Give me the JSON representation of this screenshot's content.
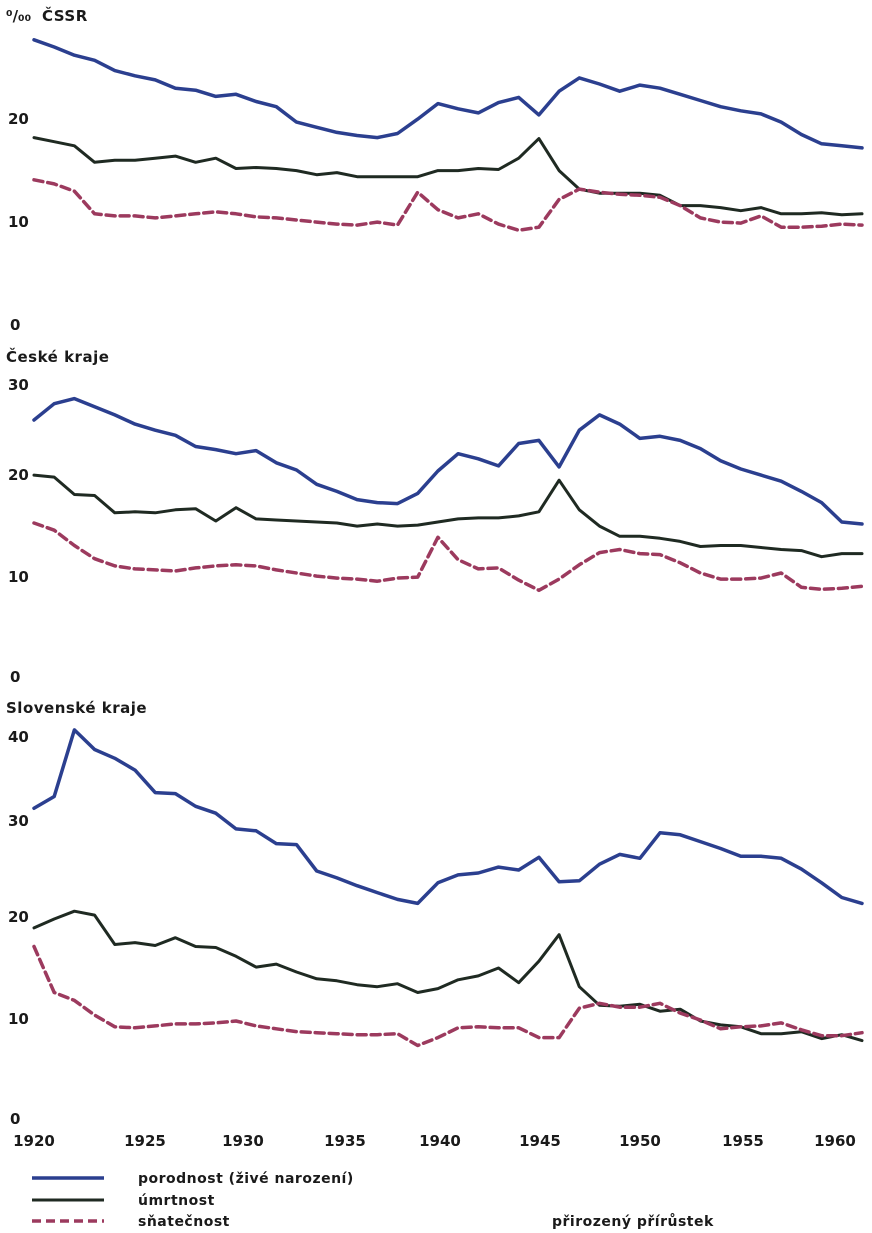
{
  "unit_label": "⁰/₀₀",
  "x_ticks": [
    1920,
    1925,
    1930,
    1935,
    1940,
    1945,
    1950,
    1955,
    1960
  ],
  "legend": [
    {
      "label": "porodnost (živé narození)",
      "style": "solid",
      "color": "#2b3f8f"
    },
    {
      "label": "úmrtnost",
      "style": "solid",
      "color": "#1f2a22"
    },
    {
      "label": "sňatečnost",
      "style": "dashed",
      "color": "#9c3a5e"
    }
  ],
  "extra_label": "přirozený přírůstek",
  "chart_data": [
    {
      "type": "line",
      "title": "ČSSR",
      "xlim": [
        1920,
        1961
      ],
      "ylim": [
        0,
        27
      ],
      "y_ticks": [
        0,
        10,
        20
      ],
      "x": [
        1920,
        1921,
        1922,
        1923,
        1924,
        1925,
        1926,
        1927,
        1928,
        1929,
        1930,
        1931,
        1932,
        1933,
        1934,
        1935,
        1936,
        1937,
        1938,
        1939,
        1940,
        1941,
        1942,
        1943,
        1944,
        1945,
        1946,
        1947,
        1948,
        1949,
        1950,
        1951,
        1952,
        1953,
        1954,
        1955,
        1956,
        1957,
        1958,
        1959,
        1960,
        1961
      ],
      "series": [
        {
          "name": "porodnost (živé narození)",
          "color": "#2b3f8f",
          "style": "solid",
          "values": [
            27.5,
            26.8,
            26.0,
            25.5,
            24.5,
            24.0,
            23.6,
            22.8,
            22.6,
            22.0,
            22.2,
            21.5,
            21.0,
            19.5,
            19.0,
            18.5,
            18.2,
            18.0,
            18.4,
            19.8,
            21.3,
            20.8,
            20.4,
            21.4,
            21.9,
            20.2,
            22.5,
            23.8,
            23.2,
            22.5,
            23.1,
            22.8,
            22.2,
            21.6,
            21.0,
            20.6,
            20.3,
            19.5,
            18.3,
            17.4,
            17.2,
            17.0
          ],
          "note": "approximate values read from the figure"
        },
        {
          "name": "úmrtnost",
          "color": "#1f2a22",
          "style": "solid",
          "values": [
            18.0,
            17.6,
            17.2,
            15.6,
            15.8,
            15.8,
            16.0,
            16.2,
            15.6,
            16.0,
            15.0,
            15.1,
            15.0,
            14.8,
            14.4,
            14.6,
            14.2,
            14.2,
            14.2,
            14.2,
            14.8,
            14.8,
            15.0,
            14.9,
            16.0,
            17.9,
            14.8,
            13.0,
            12.6,
            12.6,
            12.6,
            12.4,
            11.4,
            11.4,
            11.2,
            10.9,
            11.2,
            10.6,
            10.6,
            10.7,
            10.5,
            10.6
          ],
          "note": "approximate values read from the figure"
        },
        {
          "name": "sňatečnost",
          "color": "#9c3a5e",
          "style": "dashed",
          "values": [
            13.9,
            13.5,
            12.8,
            10.6,
            10.4,
            10.4,
            10.2,
            10.4,
            10.6,
            10.8,
            10.6,
            10.3,
            10.2,
            10.0,
            9.8,
            9.6,
            9.5,
            9.8,
            9.5,
            12.7,
            11.0,
            10.2,
            10.6,
            9.6,
            9.0,
            9.3,
            12.0,
            13.0,
            12.7,
            12.5,
            12.4,
            12.2,
            11.4,
            10.2,
            9.8,
            9.7,
            10.4,
            9.3,
            9.3,
            9.4,
            9.6,
            9.5
          ],
          "note": "approximate values read from the figure"
        }
      ]
    },
    {
      "type": "line",
      "title": "České kraje",
      "xlim": [
        1920,
        1961
      ],
      "ylim": [
        0,
        30
      ],
      "y_ticks": [
        0,
        10,
        20,
        30
      ],
      "x": [
        1920,
        1921,
        1922,
        1923,
        1924,
        1925,
        1926,
        1927,
        1928,
        1929,
        1930,
        1931,
        1932,
        1933,
        1934,
        1935,
        1936,
        1937,
        1938,
        1939,
        1940,
        1941,
        1942,
        1943,
        1944,
        1945,
        1946,
        1947,
        1948,
        1949,
        1950,
        1951,
        1952,
        1953,
        1954,
        1955,
        1956,
        1957,
        1958,
        1959,
        1960,
        1961
      ],
      "series": [
        {
          "name": "porodnost (živé narození)",
          "color": "#2b3f8f",
          "style": "solid",
          "values": [
            25.0,
            26.6,
            27.1,
            26.3,
            25.5,
            24.6,
            24.0,
            23.5,
            22.4,
            22.1,
            21.7,
            22.0,
            20.8,
            20.1,
            18.7,
            18.0,
            17.2,
            16.9,
            16.8,
            17.8,
            20.0,
            21.7,
            21.2,
            20.5,
            22.7,
            23.0,
            20.4,
            24.0,
            25.5,
            24.6,
            23.2,
            23.4,
            23.0,
            22.2,
            21.0,
            20.2,
            19.6,
            19.0,
            18.0,
            16.9,
            15.0,
            14.8
          ],
          "note": "approximate values read from the figure"
        },
        {
          "name": "úmrtnost",
          "color": "#1f2a22",
          "style": "solid",
          "values": [
            19.6,
            19.4,
            17.7,
            17.6,
            15.9,
            16.0,
            15.9,
            16.2,
            16.3,
            15.1,
            16.4,
            15.3,
            15.2,
            15.1,
            15.0,
            14.9,
            14.6,
            14.8,
            14.6,
            14.7,
            15.0,
            15.3,
            15.4,
            15.4,
            15.6,
            16.0,
            19.1,
            16.2,
            14.6,
            13.6,
            13.6,
            13.4,
            13.1,
            12.6,
            12.7,
            12.7,
            12.5,
            12.3,
            12.2,
            11.6,
            11.9,
            11.9
          ],
          "note": "approximate values read from the figure"
        },
        {
          "name": "sňatečnost",
          "color": "#9c3a5e",
          "style": "dashed",
          "values": [
            14.9,
            14.2,
            12.7,
            11.4,
            10.7,
            10.4,
            10.3,
            10.2,
            10.5,
            10.7,
            10.8,
            10.7,
            10.3,
            10.0,
            9.7,
            9.5,
            9.4,
            9.2,
            9.5,
            9.6,
            13.5,
            11.3,
            10.4,
            10.5,
            9.3,
            8.3,
            9.4,
            10.8,
            12.0,
            12.3,
            11.9,
            11.8,
            11.0,
            10.0,
            9.4,
            9.4,
            9.5,
            10.0,
            8.6,
            8.4,
            8.5,
            8.7
          ],
          "note": "approximate values read from the figure"
        }
      ]
    },
    {
      "type": "line",
      "title": "Slovenské kraje",
      "xlim": [
        1920,
        1961
      ],
      "ylim": [
        0,
        40
      ],
      "y_ticks": [
        0,
        10,
        20,
        30,
        40
      ],
      "x": [
        1920,
        1921,
        1922,
        1923,
        1924,
        1925,
        1926,
        1927,
        1928,
        1929,
        1930,
        1931,
        1932,
        1933,
        1934,
        1935,
        1936,
        1937,
        1938,
        1939,
        1940,
        1941,
        1942,
        1943,
        1944,
        1945,
        1946,
        1947,
        1948,
        1949,
        1950,
        1951,
        1952,
        1953,
        1954,
        1955,
        1956,
        1957,
        1958,
        1959,
        1960,
        1961
      ],
      "series": [
        {
          "name": "porodnost (živé narození)",
          "color": "#2b3f8f",
          "style": "solid",
          "values": [
            31.5,
            32.7,
            39.5,
            37.5,
            36.6,
            35.4,
            33.1,
            33.0,
            31.7,
            31.0,
            29.4,
            29.2,
            27.9,
            27.8,
            25.1,
            24.4,
            23.6,
            22.9,
            22.2,
            21.8,
            23.9,
            24.7,
            24.9,
            25.5,
            25.2,
            26.5,
            24.0,
            24.1,
            25.8,
            26.8,
            26.4,
            29.0,
            28.8,
            28.1,
            27.4,
            26.6,
            26.6,
            26.4,
            25.3,
            23.9,
            22.4,
            21.8
          ],
          "note": "approximate values read from the figure"
        },
        {
          "name": "úmrtnost",
          "color": "#1f2a22",
          "style": "solid",
          "values": [
            19.3,
            20.2,
            21.0,
            20.6,
            17.6,
            17.8,
            17.5,
            18.3,
            17.4,
            17.3,
            16.4,
            15.3,
            15.6,
            14.8,
            14.1,
            13.9,
            13.5,
            13.3,
            13.6,
            12.7,
            13.1,
            14.0,
            14.4,
            15.2,
            13.7,
            15.9,
            18.6,
            13.3,
            11.4,
            11.3,
            11.5,
            10.8,
            11.0,
            9.8,
            9.4,
            9.2,
            8.5,
            8.5,
            8.7,
            8.0,
            8.4,
            7.8
          ],
          "note": "approximate values read from the figure"
        },
        {
          "name": "sňatečnost",
          "color": "#9c3a5e",
          "style": "dashed",
          "values": [
            17.4,
            12.7,
            11.9,
            10.4,
            9.2,
            9.1,
            9.3,
            9.5,
            9.5,
            9.6,
            9.8,
            9.3,
            9.0,
            8.7,
            8.6,
            8.5,
            8.4,
            8.4,
            8.5,
            7.3,
            8.1,
            9.1,
            9.2,
            9.1,
            9.1,
            8.1,
            8.1,
            11.1,
            11.6,
            11.2,
            11.2,
            11.6,
            10.6,
            9.9,
            9.0,
            9.2,
            9.3,
            9.6,
            8.9,
            8.3,
            8.3,
            8.6
          ],
          "note": "approximate values read from the figure"
        }
      ]
    }
  ]
}
